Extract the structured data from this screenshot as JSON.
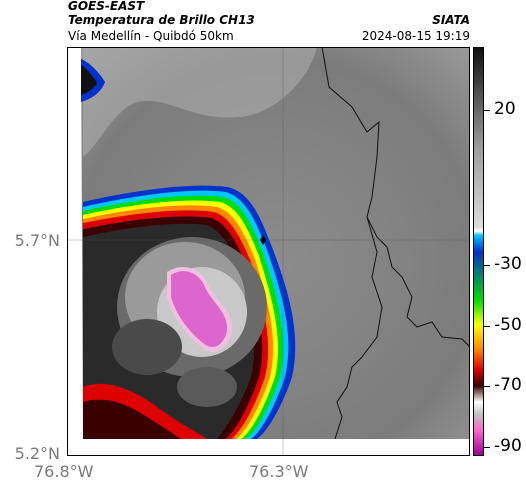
{
  "header": {
    "satellite": "GOES-EAST",
    "product": "Temperatura de Brillo CH13",
    "route": "Vía Medellín - Quibdó 50km",
    "org": "SIATA",
    "timestamp": "2024-08-15 19:19"
  },
  "axes": {
    "lat_labels": [
      "5.7°N",
      "5.2°N"
    ],
    "lon_labels": [
      "76.8°W",
      "76.3°W"
    ]
  },
  "colorbar": {
    "labels": [
      "20",
      "-30",
      "-50",
      "-70",
      "-90"
    ],
    "colors": [
      "#111111",
      "#555555",
      "#9a9a9a",
      "#dcdcdc",
      "#00c8ff",
      "#0033cc",
      "#00dd00",
      "#ffff00",
      "#ff8800",
      "#dd0000",
      "#3a0000",
      "#e0e0e0",
      "#ff66cc",
      "#990099"
    ]
  },
  "map_icons": [
    "city-marker-icon"
  ]
}
